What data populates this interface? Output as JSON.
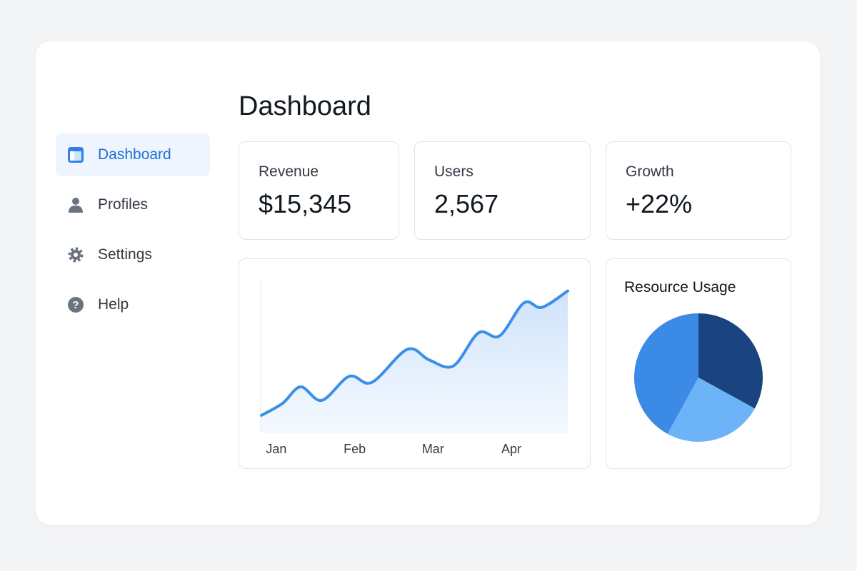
{
  "sidebar": {
    "items": [
      "Dashboard",
      "Profiles",
      "Settings",
      "Help"
    ],
    "active": 0
  },
  "header": {
    "title": "Dashboard"
  },
  "stats": [
    {
      "label": "Revenue",
      "value": "$15,345"
    },
    {
      "label": "Users",
      "value": "2,567"
    },
    {
      "label": "Growth",
      "value": "+22%"
    }
  ],
  "line_chart": {
    "type": "line",
    "x": [
      -0.19,
      0.08,
      0.31,
      0.58,
      0.93,
      1.22,
      1.67,
      1.95,
      2.26,
      2.58,
      2.85,
      3.16,
      3.39,
      3.72
    ],
    "values": [
      11,
      19,
      30,
      21,
      37,
      33,
      55,
      48,
      44,
      66,
      64,
      86,
      83,
      94
    ],
    "xlim": [
      -0.2,
      3.72
    ],
    "ylim": [
      0,
      100
    ],
    "xticks": [
      {
        "value": 0,
        "label": "Jan"
      },
      {
        "value": 1,
        "label": "Feb"
      },
      {
        "value": 2,
        "label": "Mar"
      },
      {
        "value": 3,
        "label": "Apr"
      }
    ],
    "color": "#3b8fe8"
  },
  "pie_chart": {
    "type": "pie",
    "title": "Resource Usage",
    "values": [
      33,
      25,
      42
    ],
    "colors": [
      "#1a4480",
      "#6cb4f7",
      "#3a8ae6"
    ]
  }
}
